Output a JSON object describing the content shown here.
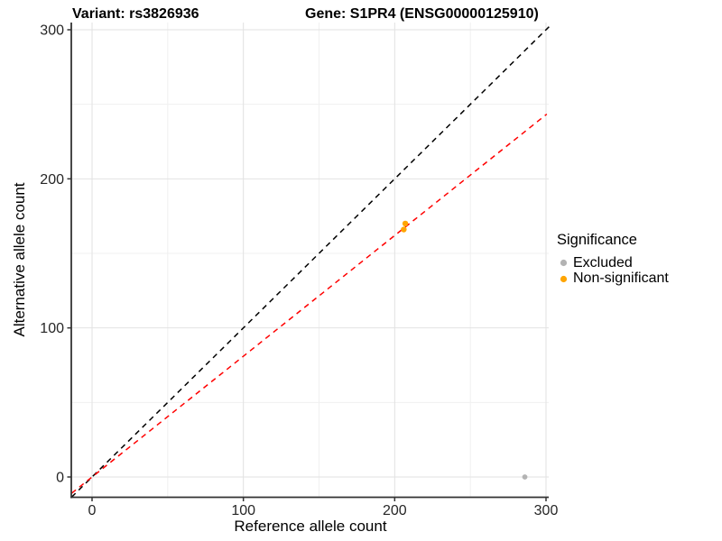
{
  "titles": {
    "variant": "Variant: rs3826936",
    "gene": "Gene: S1PR4 (ENSG00000125910)"
  },
  "axes": {
    "x_label": "Reference allele count",
    "y_label": "Alternative allele count"
  },
  "legend": {
    "title": "Significance",
    "items": [
      {
        "label": "Excluded",
        "color": "#b3b3b3"
      },
      {
        "label": "Non-significant",
        "color": "#FFA500"
      }
    ]
  },
  "chart_data": {
    "type": "scatter",
    "title": "Variant: rs3826936   Gene: S1PR4 (ENSG00000125910)",
    "xlabel": "Reference allele count",
    "ylabel": "Alternative allele count",
    "xlim": [
      -15,
      302
    ],
    "ylim": [
      -15,
      305
    ],
    "x_ticks": [
      0,
      100,
      200,
      300
    ],
    "y_ticks": [
      0,
      100,
      200,
      300
    ],
    "x_minor_ticks": [
      50,
      150,
      250
    ],
    "y_minor_ticks": [
      50,
      150,
      250
    ],
    "grid": true,
    "legend_position": "right",
    "series": [
      {
        "name": "Excluded",
        "color": "#b3b3b3",
        "point_radius": 2.9,
        "points": [
          {
            "x": 286,
            "y": 0
          }
        ]
      },
      {
        "name": "Non-significant",
        "color": "#FFA500",
        "point_radius": 3.2,
        "points": [
          {
            "x": 207,
            "y": 170
          },
          {
            "x": 206,
            "y": 166
          }
        ]
      }
    ],
    "lines": [
      {
        "name": "identity-line",
        "slope": 1,
        "intercept": 0,
        "color": "#000000",
        "dashed": true,
        "x_start": -13.5,
        "x_end": 302
      },
      {
        "name": "fit-line",
        "slope": 0.81,
        "intercept": 0,
        "color": "#ff0000",
        "dashed": true,
        "x_start": -13.5,
        "x_end": 300.5
      }
    ],
    "style": {
      "grid_major_color": "#e2e2e2",
      "grid_minor_color": "#f0f0f0",
      "axis_color": "#333333",
      "tick_label_color": "#262626"
    }
  }
}
